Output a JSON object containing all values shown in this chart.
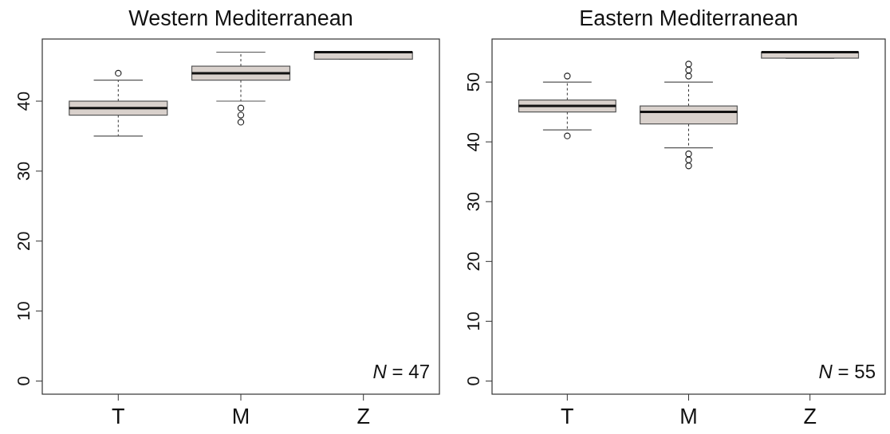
{
  "chart_data": [
    {
      "type": "box",
      "title": "Western Mediterranean",
      "categories": [
        "T",
        "M",
        "Z"
      ],
      "color": "#d9d1cc",
      "ylim": [
        -1.88,
        48.88
      ],
      "yticks": [
        0,
        10,
        20,
        30,
        40
      ],
      "annotations": [
        "N = 47"
      ],
      "boxes": [
        {
          "low": 35,
          "q1": 38,
          "median": 39,
          "q3": 40,
          "high": 43,
          "outliers": [
            44
          ]
        },
        {
          "low": 40,
          "q1": 43,
          "median": 44,
          "q3": 45,
          "high": 47,
          "outliers": [
            39,
            38,
            37
          ]
        },
        {
          "low": 46,
          "q1": 46,
          "median": 47,
          "q3": 47,
          "high": 47
        }
      ]
    },
    {
      "type": "box",
      "title": "Eastern Mediterranean",
      "categories": [
        "T",
        "M",
        "Z"
      ],
      "color": "#d9d1cc",
      "ylim": [
        -2.2,
        57.2
      ],
      "yticks": [
        0,
        10,
        20,
        30,
        40,
        50
      ],
      "annotations": [
        "N = 55"
      ],
      "boxes": [
        {
          "low": 42,
          "q1": 45,
          "median": 46,
          "q3": 47,
          "high": 50,
          "outliers": [
            51,
            41
          ]
        },
        {
          "low": 39,
          "q1": 43,
          "median": 45,
          "q3": 46,
          "high": 50,
          "outliers": [
            51,
            52,
            53,
            38,
            37,
            36
          ]
        },
        {
          "low": 54,
          "q1": 54,
          "median": 55,
          "q3": 55,
          "high": 55
        }
      ]
    }
  ]
}
